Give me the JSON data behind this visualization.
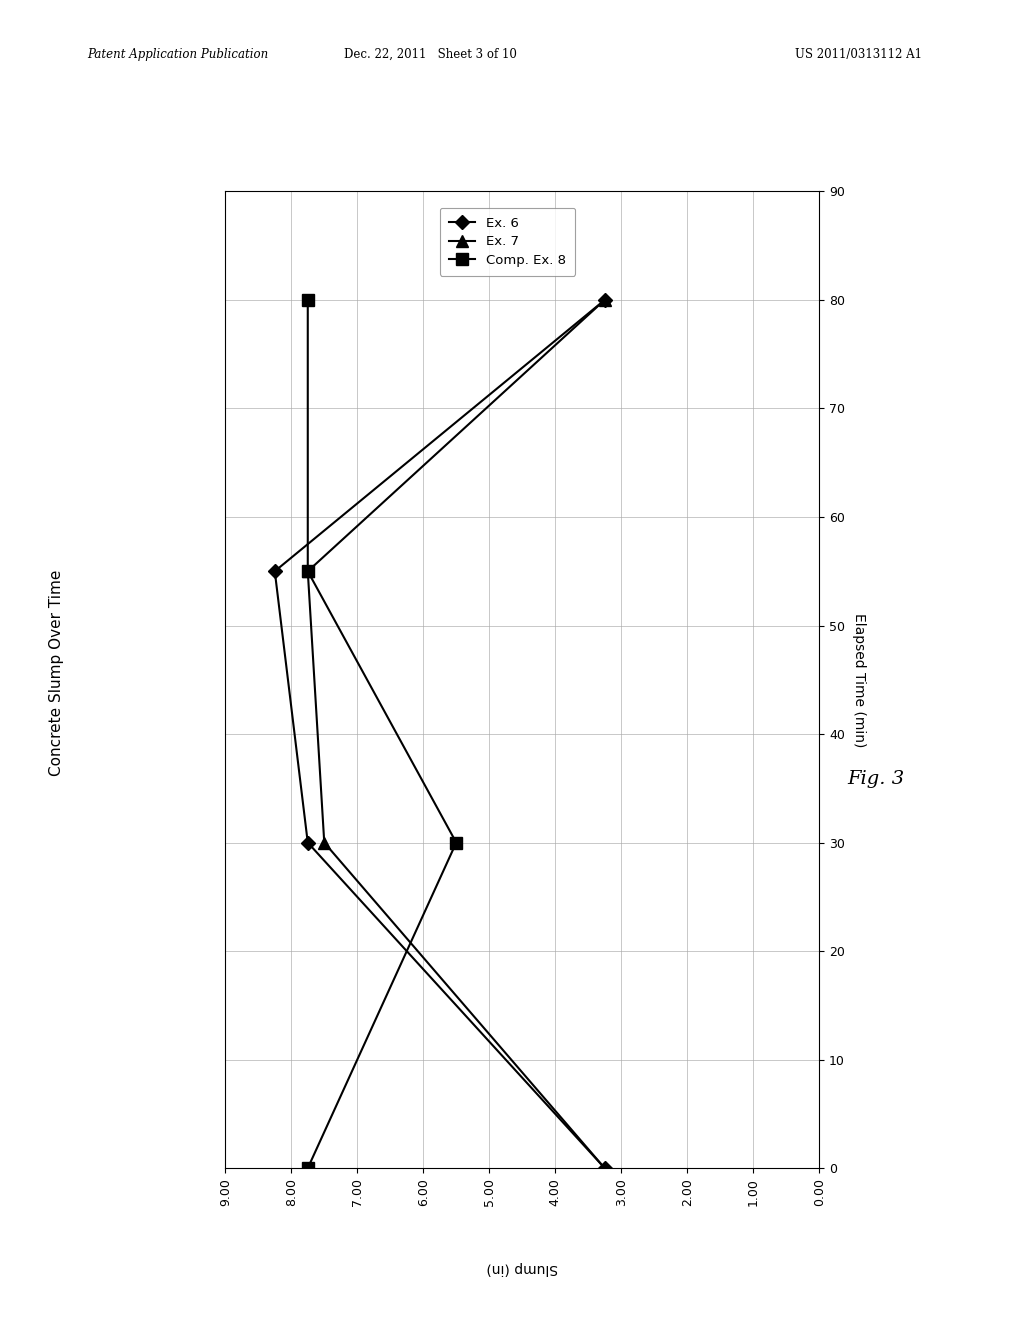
{
  "title": "Concrete Slump Over Time",
  "time_label": "Elapsed Time (min)",
  "slump_label": "Slump (in)",
  "fig_label": "Fig. 3",
  "header_left": "Patent Application Publication",
  "header_mid": "Dec. 22, 2011   Sheet 3 of 10",
  "header_right": "US 2011/0313112 A1",
  "time_lim": [
    0,
    90
  ],
  "slump_lim": [
    0.0,
    9.0
  ],
  "slump_ticks": [
    0.0,
    1.0,
    2.0,
    3.0,
    4.0,
    5.0,
    6.0,
    7.0,
    8.0,
    9.0
  ],
  "time_ticks": [
    0,
    10,
    20,
    30,
    40,
    50,
    60,
    70,
    80,
    90
  ],
  "series": [
    {
      "label": "Ex. 6",
      "marker": "D",
      "time": [
        0,
        30,
        55,
        80
      ],
      "slump": [
        3.25,
        7.75,
        8.25,
        3.25
      ]
    },
    {
      "label": "Ex. 7",
      "marker": "^",
      "time": [
        0,
        30,
        55,
        80
      ],
      "slump": [
        3.25,
        7.5,
        7.75,
        3.25
      ]
    },
    {
      "label": "Comp. Ex. 8",
      "marker": "s",
      "time": [
        0,
        30,
        55,
        80
      ],
      "slump": [
        7.75,
        5.5,
        7.75,
        7.75
      ]
    }
  ],
  "line_color": "#000000",
  "bg_color": "#ffffff",
  "grid_color": "#aaaaaa"
}
